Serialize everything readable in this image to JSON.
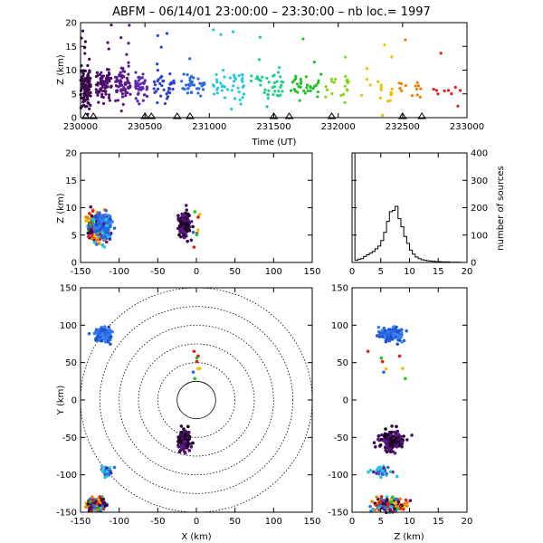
{
  "title": "ABFM – 06/14/01 23:00:00 – 23:30:00 – nb loc.=   1997",
  "chart_data": [
    {
      "type": "scatter",
      "name": "time-height",
      "xlabel": "Time (UT)",
      "ylabel": "Z (km)",
      "xlim": [
        230000,
        233000
      ],
      "ylim": [
        0,
        20
      ],
      "xticks": [
        "230000",
        "230500",
        "231000",
        "231500",
        "232000",
        "232500",
        "233000"
      ],
      "yticks": [
        "0",
        "5",
        "10",
        "15",
        "20"
      ],
      "clusters": [
        {
          "x": 230040,
          "z": 6.5,
          "dx": 40,
          "dz": 4,
          "n": 110,
          "color": "#3a0a4a"
        },
        {
          "x": 230180,
          "z": 7.0,
          "dx": 60,
          "dz": 3,
          "n": 80,
          "color": "#4b0f6b"
        },
        {
          "x": 230330,
          "z": 7.0,
          "dx": 60,
          "dz": 3,
          "n": 70,
          "color": "#5a1a8c"
        },
        {
          "x": 230470,
          "z": 6.5,
          "dx": 50,
          "dz": 2.5,
          "n": 40,
          "color": "#5e2ab0"
        },
        {
          "x": 230650,
          "z": 6.0,
          "dx": 80,
          "dz": 3,
          "n": 40,
          "color": "#3040d0"
        },
        {
          "x": 230880,
          "z": 7.0,
          "dx": 100,
          "dz": 3,
          "n": 35,
          "color": "#2a6ae0"
        },
        {
          "x": 231150,
          "z": 6.5,
          "dx": 120,
          "dz": 3,
          "n": 45,
          "color": "#26c8e0"
        },
        {
          "x": 231450,
          "z": 6.5,
          "dx": 130,
          "dz": 3,
          "n": 40,
          "color": "#20d08a"
        },
        {
          "x": 231750,
          "z": 6.5,
          "dx": 120,
          "dz": 2.5,
          "n": 35,
          "color": "#22c22a"
        },
        {
          "x": 232000,
          "z": 6.5,
          "dx": 100,
          "dz": 2.5,
          "n": 20,
          "color": "#86d81c"
        },
        {
          "x": 232300,
          "z": 6.0,
          "dx": 120,
          "dz": 2.5,
          "n": 18,
          "color": "#f0c000"
        },
        {
          "x": 232550,
          "z": 5.5,
          "dx": 100,
          "dz": 2.5,
          "n": 14,
          "color": "#f08000"
        },
        {
          "x": 232850,
          "z": 5.5,
          "dx": 120,
          "dz": 2.5,
          "n": 10,
          "color": "#e02010"
        }
      ],
      "ground_markers_x": [
        230040,
        230100,
        230500,
        230550,
        230750,
        230850,
        231500,
        231620,
        231950,
        232500,
        232650
      ]
    },
    {
      "type": "scatter",
      "name": "x-z",
      "xlabel": "",
      "ylabel": "Z (km)",
      "xlim": [
        -150,
        150
      ],
      "ylim": [
        0,
        20
      ],
      "xticks": [
        "-150",
        "-100",
        "-50",
        "0",
        "50",
        "100",
        "150"
      ],
      "yticks": [
        "0",
        "5",
        "10",
        "15",
        "20"
      ]
    },
    {
      "type": "histogram",
      "name": "altitude-distribution",
      "xlabel": "",
      "ylabel": "number of sources",
      "xlim": [
        0,
        20
      ],
      "ylim": [
        0,
        400
      ],
      "xticks": [
        "0",
        "5",
        "10",
        "15",
        "20"
      ],
      "yticks": [
        "0",
        "100",
        "200",
        "300",
        "400"
      ],
      "bin_width": 0.5,
      "bins_start": 0,
      "counts": [
        400,
        8,
        12,
        14,
        22,
        28,
        34,
        40,
        50,
        60,
        80,
        110,
        150,
        185,
        190,
        205,
        160,
        130,
        95,
        70,
        45,
        30,
        20,
        14,
        10,
        8,
        6,
        5,
        4,
        3,
        3,
        2,
        2,
        2,
        1,
        1,
        1,
        1,
        0,
        0
      ]
    },
    {
      "type": "scatter",
      "name": "plan-view",
      "xlabel": "X (km)",
      "ylabel": "Y (km)",
      "xlim": [
        -150,
        150
      ],
      "ylim": [
        -150,
        150
      ],
      "xticks": [
        "-150",
        "-100",
        "-50",
        "0",
        "50",
        "100",
        "150"
      ],
      "yticks": [
        "-150",
        "-100",
        "-50",
        "0",
        "50",
        "100",
        "150"
      ],
      "range_rings_km": [
        25,
        50,
        75,
        100,
        125,
        150
      ]
    },
    {
      "type": "scatter",
      "name": "z-y",
      "xlabel": "Z (km)",
      "ylabel": "",
      "xlim": [
        0,
        20
      ],
      "ylim": [
        -150,
        150
      ],
      "xticks": [
        "0",
        "5",
        "10",
        "15",
        "20"
      ],
      "yticks": [
        "-150",
        "-100",
        "-50",
        "0",
        "50",
        "100",
        "150"
      ]
    }
  ],
  "source_groups": [
    {
      "x": -130,
      "y": -140,
      "z": 6.5,
      "sx": 12,
      "sy": 10,
      "sz": 3.0,
      "n": 170,
      "colors": [
        "#3a0a4a",
        "#4b0f6b",
        "#2a6ae0",
        "#22c22a",
        "#e02010",
        "#f0c000",
        "#26c8e0",
        "#f08000"
      ]
    },
    {
      "x": -120,
      "y": 88,
      "z": 7.0,
      "sx": 10,
      "sy": 8,
      "sz": 2.0,
      "n": 150,
      "colors": [
        "#2a6ae0",
        "#3a80f0",
        "#1a50d0"
      ]
    },
    {
      "x": -15,
      "y": -55,
      "z": 7.0,
      "sx": 7,
      "sy": 12,
      "sz": 2.0,
      "n": 170,
      "colors": [
        "#1a0620",
        "#3a0a4a",
        "#4b0f6b",
        "#5a1a8c"
      ]
    },
    {
      "x": -115,
      "y": -95,
      "z": 5.0,
      "sx": 8,
      "sy": 10,
      "sz": 3.0,
      "n": 30,
      "colors": [
        "#5a1a8c",
        "#2a6ae0",
        "#26c8e0"
      ]
    },
    {
      "x": 0,
      "y": 40,
      "z": 6.0,
      "sx": 4,
      "sy": 30,
      "sz": 3.0,
      "n": 8,
      "colors": [
        "#f0c000",
        "#e02010",
        "#2a6ae0",
        "#22c22a"
      ]
    }
  ]
}
